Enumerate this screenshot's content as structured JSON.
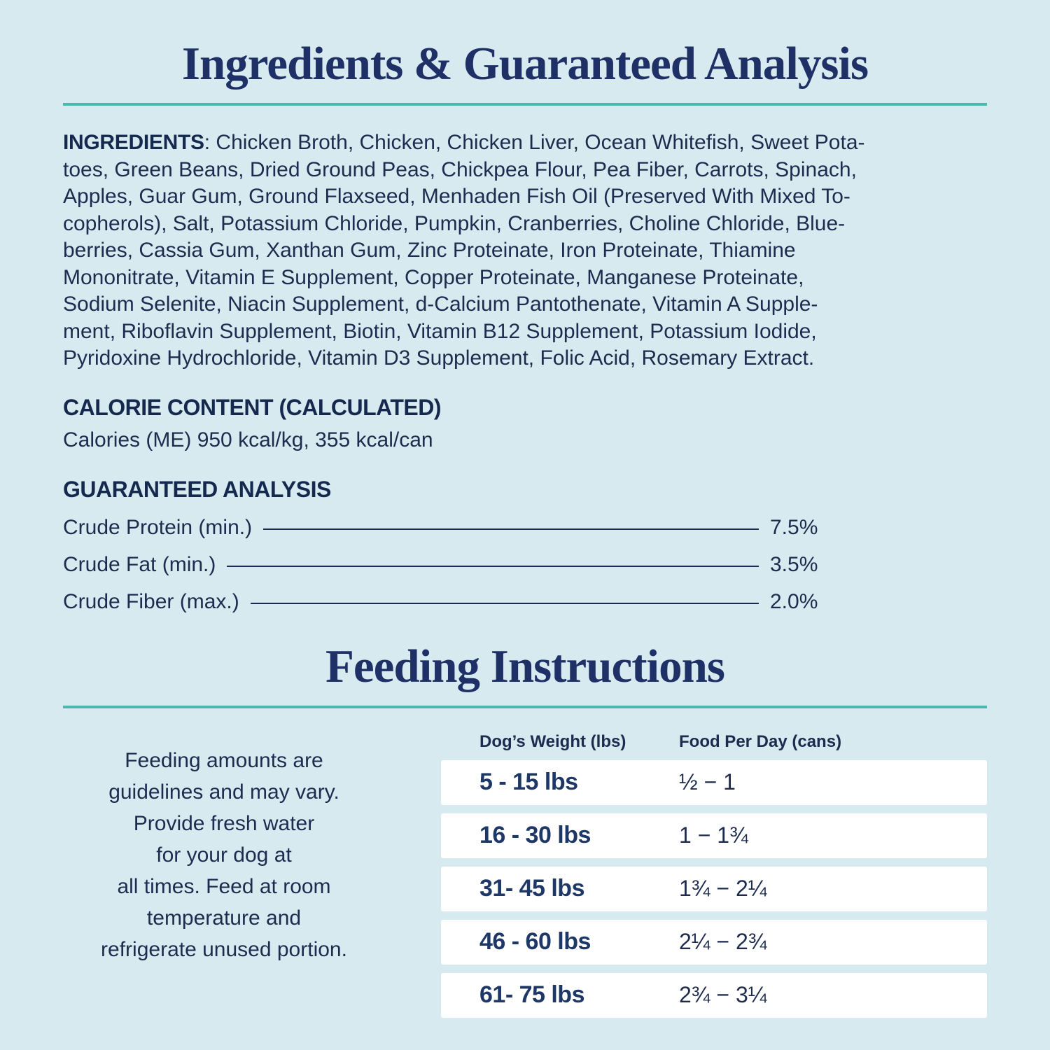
{
  "colors": {
    "background": "#d7eaf0",
    "title_navy": "#1f3067",
    "body_navy": "#1d2c4e",
    "weight_navy": "#1d3767",
    "teal_rule": "#4cb7ad",
    "row_white": "#ffffff"
  },
  "section1": {
    "title": "Ingredients & Guaranteed Analysis"
  },
  "ingredients": {
    "label": "INGREDIENTS",
    "text": ": Chicken Broth, Chicken, Chicken Liver, Ocean Whitefish, Sweet Pota-\ntoes, Green Beans, Dried Ground Peas, Chickpea Flour, Pea Fiber, Carrots, Spinach,\nApples, Guar Gum, Ground Flaxseed, Menhaden Fish Oil (Preserved With Mixed To-\ncopherols), Salt, Potassium Chloride, Pumpkin, Cranberries, Choline Chloride, Blue-\nberries, Cassia Gum, Xanthan Gum, Zinc Proteinate, Iron Proteinate, Thiamine\nMononitrate, Vitamin E Supplement, Copper Proteinate, Manganese Proteinate,\nSodium Selenite, Niacin Supplement, d-Calcium Pantothenate, Vitamin A Supple-\nment, Riboflavin Supplement, Biotin, Vitamin B12 Supplement, Potassium Iodide,\nPyridoxine Hydrochloride, Vitamin D3 Supplement, Folic Acid, Rosemary Extract."
  },
  "calorie": {
    "heading": "CALORIE CONTENT (CALCULATED)",
    "line": "Calories (ME) 950 kcal/kg, 355 kcal/can"
  },
  "analysis": {
    "heading": "GUARANTEED ANALYSIS",
    "rows": [
      {
        "label": "Crude Protein (min.)",
        "value": "7.5%"
      },
      {
        "label": "Crude Fat (min.)",
        "value": "3.5%"
      },
      {
        "label": "Crude Fiber (max.)",
        "value": "2.0%"
      }
    ]
  },
  "section2": {
    "title": "Feeding Instructions",
    "note": "Feeding amounts are\nguidelines and may vary.\nProvide fresh water\nfor your dog at\nall times. Feed at room\ntemperature and\nrefrigerate unused portion."
  },
  "feeding_table": {
    "headers": {
      "weight": "Dog’s Weight (lbs)",
      "food": "Food Per Day (cans)"
    },
    "rows": [
      {
        "weight": "5 - 15 lbs",
        "food": "½ − 1"
      },
      {
        "weight": "16 - 30 lbs",
        "food": "1 − 1¾"
      },
      {
        "weight": "31- 45 lbs",
        "food": "1¾ − 2¼"
      },
      {
        "weight": "46 - 60 lbs",
        "food": "2¼ − 2¾"
      },
      {
        "weight": "61- 75 lbs",
        "food": "2¾ − 3¼"
      }
    ]
  }
}
